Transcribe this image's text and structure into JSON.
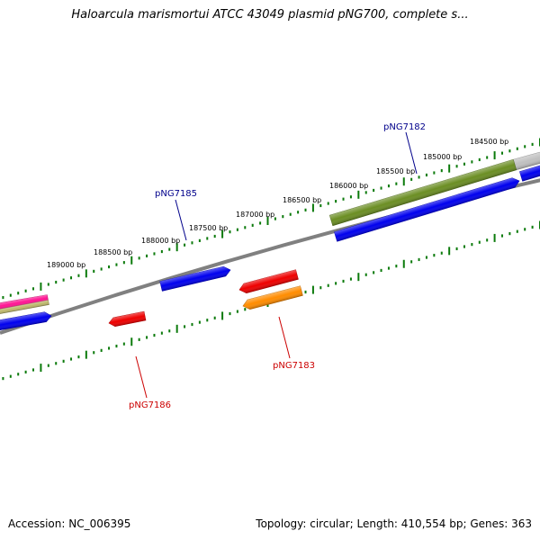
{
  "title": "Haloarcula marismortui ATCC 43049 plasmid pNG700, complete s...",
  "footer": {
    "accession": "Accession: NC_006395",
    "summary": "Topology: circular; Length: 410,554 bp; Genes: 363"
  },
  "colors": {
    "forward_label": "#00008b",
    "reverse_label": "#cc0000",
    "tick": "#0b7a0b",
    "backbone": "#808080"
  },
  "chart_data": {
    "type": "genome-map",
    "ticks": [
      {
        "label": "184500 bp"
      },
      {
        "label": "185000 bp"
      },
      {
        "label": "185500 bp"
      },
      {
        "label": "186000 bp"
      },
      {
        "label": "186500 bp"
      },
      {
        "label": "187000 bp"
      },
      {
        "label": "187500 bp"
      },
      {
        "label": "188000 bp"
      },
      {
        "label": "188500 bp"
      },
      {
        "label": "189000 bp"
      }
    ],
    "gene_labels": [
      {
        "name": "pNG7182",
        "strand": "forward"
      },
      {
        "name": "pNG7185",
        "strand": "forward"
      },
      {
        "name": "pNG7183",
        "strand": "reverse"
      },
      {
        "name": "pNG7186",
        "strand": "reverse"
      }
    ],
    "features": [
      {
        "name": "grey",
        "color": "#c0c0c0"
      },
      {
        "name": "olive",
        "color": "#6b8e23"
      },
      {
        "name": "blue-long",
        "color": "#0000ee"
      },
      {
        "name": "blue-right",
        "color": "#0000ee"
      },
      {
        "name": "blue-mid",
        "color": "#0000ee"
      },
      {
        "name": "blue-left",
        "color": "#0000ee"
      },
      {
        "name": "pink",
        "color": "#ff1493"
      },
      {
        "name": "tan",
        "color": "#bdb76b"
      },
      {
        "name": "red-mid",
        "color": "#ee0000"
      },
      {
        "name": "orange",
        "color": "#ff8c00"
      },
      {
        "name": "red-left",
        "color": "#ee0000"
      }
    ]
  }
}
